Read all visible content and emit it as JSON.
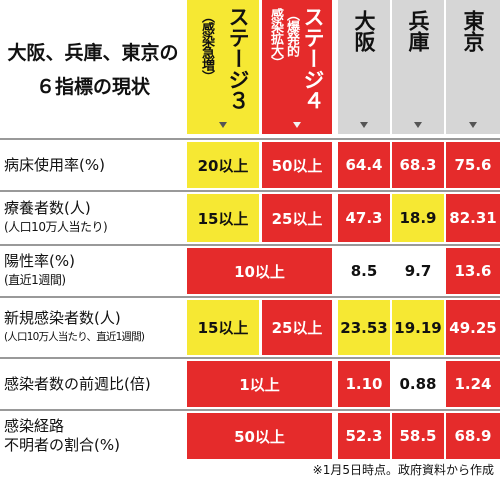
{
  "title": {
    "line1": "大阪、兵庫、東京の",
    "line2": "６指標の現状"
  },
  "headers": {
    "stage3": {
      "main": "ステージ３",
      "sub": "（感染急増）"
    },
    "stage4": {
      "main": "ステージ４",
      "sub1": "（爆発的",
      "sub2": "感染拡大）"
    },
    "osaka": "大阪",
    "hyogo": "兵庫",
    "tokyo": "東京"
  },
  "rows": [
    {
      "label": "病床使用率(%)",
      "sub": "",
      "stage3": "20以上",
      "stage4": "50以上",
      "osaka": "64.4",
      "hyogo": "68.3",
      "tokyo": "75.6",
      "colors": [
        "y",
        "r",
        "r",
        "r",
        "r"
      ]
    },
    {
      "label": "療養者数(人)",
      "sub": "(人口10万人当たり)",
      "stage3": "15以上",
      "stage4": "25以上",
      "osaka": "47.3",
      "hyogo": "18.9",
      "tokyo": "82.31",
      "colors": [
        "y",
        "r",
        "r",
        "y",
        "r"
      ]
    },
    {
      "label": "陽性率(%)",
      "sub": "(直近1週間)",
      "merged": "10以上",
      "osaka": "8.5",
      "hyogo": "9.7",
      "tokyo": "13.6",
      "colors": [
        "r",
        "w",
        "w",
        "r"
      ]
    },
    {
      "label": "新規感染者数(人)",
      "sub": "(人口10万人当たり、直近1週間)",
      "stage3": "15以上",
      "stage4": "25以上",
      "osaka": "23.53",
      "hyogo": "19.19",
      "tokyo": "49.25",
      "colors": [
        "y",
        "r",
        "y",
        "y",
        "r"
      ]
    },
    {
      "label": "感染者数の前週比(倍)",
      "sub": "",
      "merged": "1以上",
      "osaka": "1.10",
      "hyogo": "0.88",
      "tokyo": "1.24",
      "colors": [
        "r",
        "r",
        "w",
        "r"
      ]
    },
    {
      "label": "感染経路",
      "label2": "不明者の割合(%)",
      "merged": "50以上",
      "osaka": "52.3",
      "hyogo": "58.5",
      "tokyo": "68.9",
      "colors": [
        "r",
        "r",
        "r",
        "r"
      ]
    }
  ],
  "note": "※1月5日時点。政府資料から作成"
}
